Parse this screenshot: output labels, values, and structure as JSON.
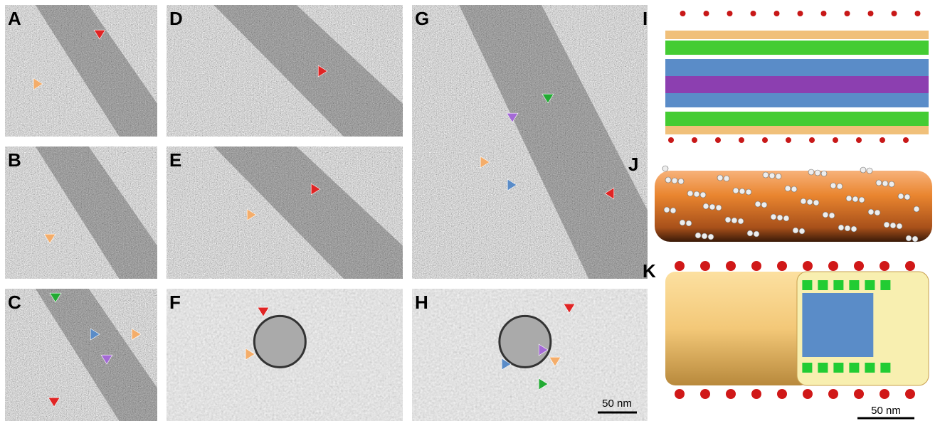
{
  "panels": [
    {
      "label": "A"
    },
    {
      "label": "B"
    },
    {
      "label": "C"
    },
    {
      "label": "D"
    },
    {
      "label": "E"
    },
    {
      "label": "F"
    },
    {
      "label": "G"
    },
    {
      "label": "H"
    },
    {
      "label": "I"
    },
    {
      "label": "J"
    },
    {
      "label": "K"
    }
  ],
  "scale_bars": [
    {
      "label": "50 nm"
    },
    {
      "label": "50 nm"
    }
  ]
}
